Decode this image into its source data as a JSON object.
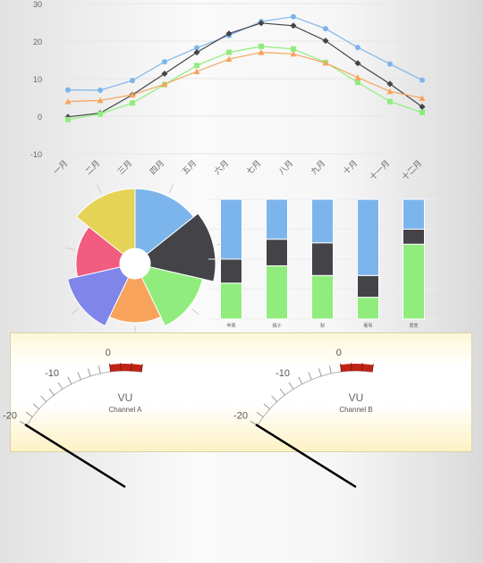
{
  "chart_data": [
    {
      "type": "line",
      "title": "",
      "xlabel": "",
      "ylabel": "",
      "categories": [
        "一月",
        "二月",
        "三月",
        "四月",
        "五月",
        "六月",
        "七月",
        "八月",
        "九月",
        "十月",
        "十一月",
        "十二月"
      ],
      "yticks": [
        "-10",
        "0",
        "10",
        "20",
        "30"
      ],
      "ylim": [
        -10,
        30
      ],
      "grid": true,
      "series": [
        {
          "color": "#7cb5ec",
          "marker": "circle",
          "values": [
            7.0,
            6.9,
            9.5,
            14.5,
            18.2,
            21.5,
            25.2,
            26.5,
            23.3,
            18.3,
            13.9,
            9.6
          ]
        },
        {
          "color": "#434348",
          "marker": "diamond",
          "values": [
            -0.2,
            0.8,
            5.7,
            11.3,
            17.0,
            22.0,
            24.8,
            24.1,
            20.1,
            14.1,
            8.6,
            2.5
          ]
        },
        {
          "color": "#90ed7d",
          "marker": "square",
          "values": [
            -0.9,
            0.6,
            3.5,
            8.4,
            13.5,
            17.0,
            18.6,
            17.9,
            14.3,
            9.0,
            3.9,
            1.0
          ]
        },
        {
          "color": "#f7a35c",
          "marker": "triangle",
          "values": [
            3.9,
            4.2,
            5.7,
            8.5,
            11.9,
            15.2,
            17.0,
            16.6,
            14.2,
            10.3,
            6.6,
            4.8
          ]
        }
      ]
    },
    {
      "type": "pie",
      "variant": "rose",
      "slices": [
        {
          "value": 100,
          "color": "#7cb5ec"
        },
        {
          "value": 115,
          "color": "#434348"
        },
        {
          "value": 85,
          "color": "#90ed7d"
        },
        {
          "value": 62,
          "color": "#f7a35c"
        },
        {
          "value": 85,
          "color": "#8085e9"
        },
        {
          "value": 62,
          "color": "#f15c80"
        },
        {
          "value": 100,
          "color": "#e4d354"
        }
      ]
    },
    {
      "type": "bar",
      "stacked": true,
      "normalized": "percent",
      "categories": [
        "苹果",
        "橘子",
        "梨",
        "葡萄",
        "香蕉"
      ],
      "series": [
        {
          "color": "#90ed7d",
          "values": [
            3,
            4,
            4,
            2,
            5
          ]
        },
        {
          "color": "#434348",
          "values": [
            2,
            2,
            3,
            2,
            1
          ]
        },
        {
          "color": "#7cb5ec",
          "values": [
            5,
            3,
            4,
            7,
            2
          ]
        }
      ]
    }
  ],
  "vu_meters": [
    {
      "title": "VU",
      "subtitle": "Channel A",
      "value": -20,
      "scale_labels": [
        "-20",
        "-10",
        "0"
      ],
      "min": -20,
      "max": 6,
      "red_band_from": 0,
      "red_band_color": "#c02316"
    },
    {
      "title": "VU",
      "subtitle": "Channel B",
      "value": -20,
      "scale_labels": [
        "-20",
        "-10",
        "0"
      ],
      "min": -20,
      "max": 6,
      "red_band_from": 0,
      "red_band_color": "#c02316"
    }
  ]
}
